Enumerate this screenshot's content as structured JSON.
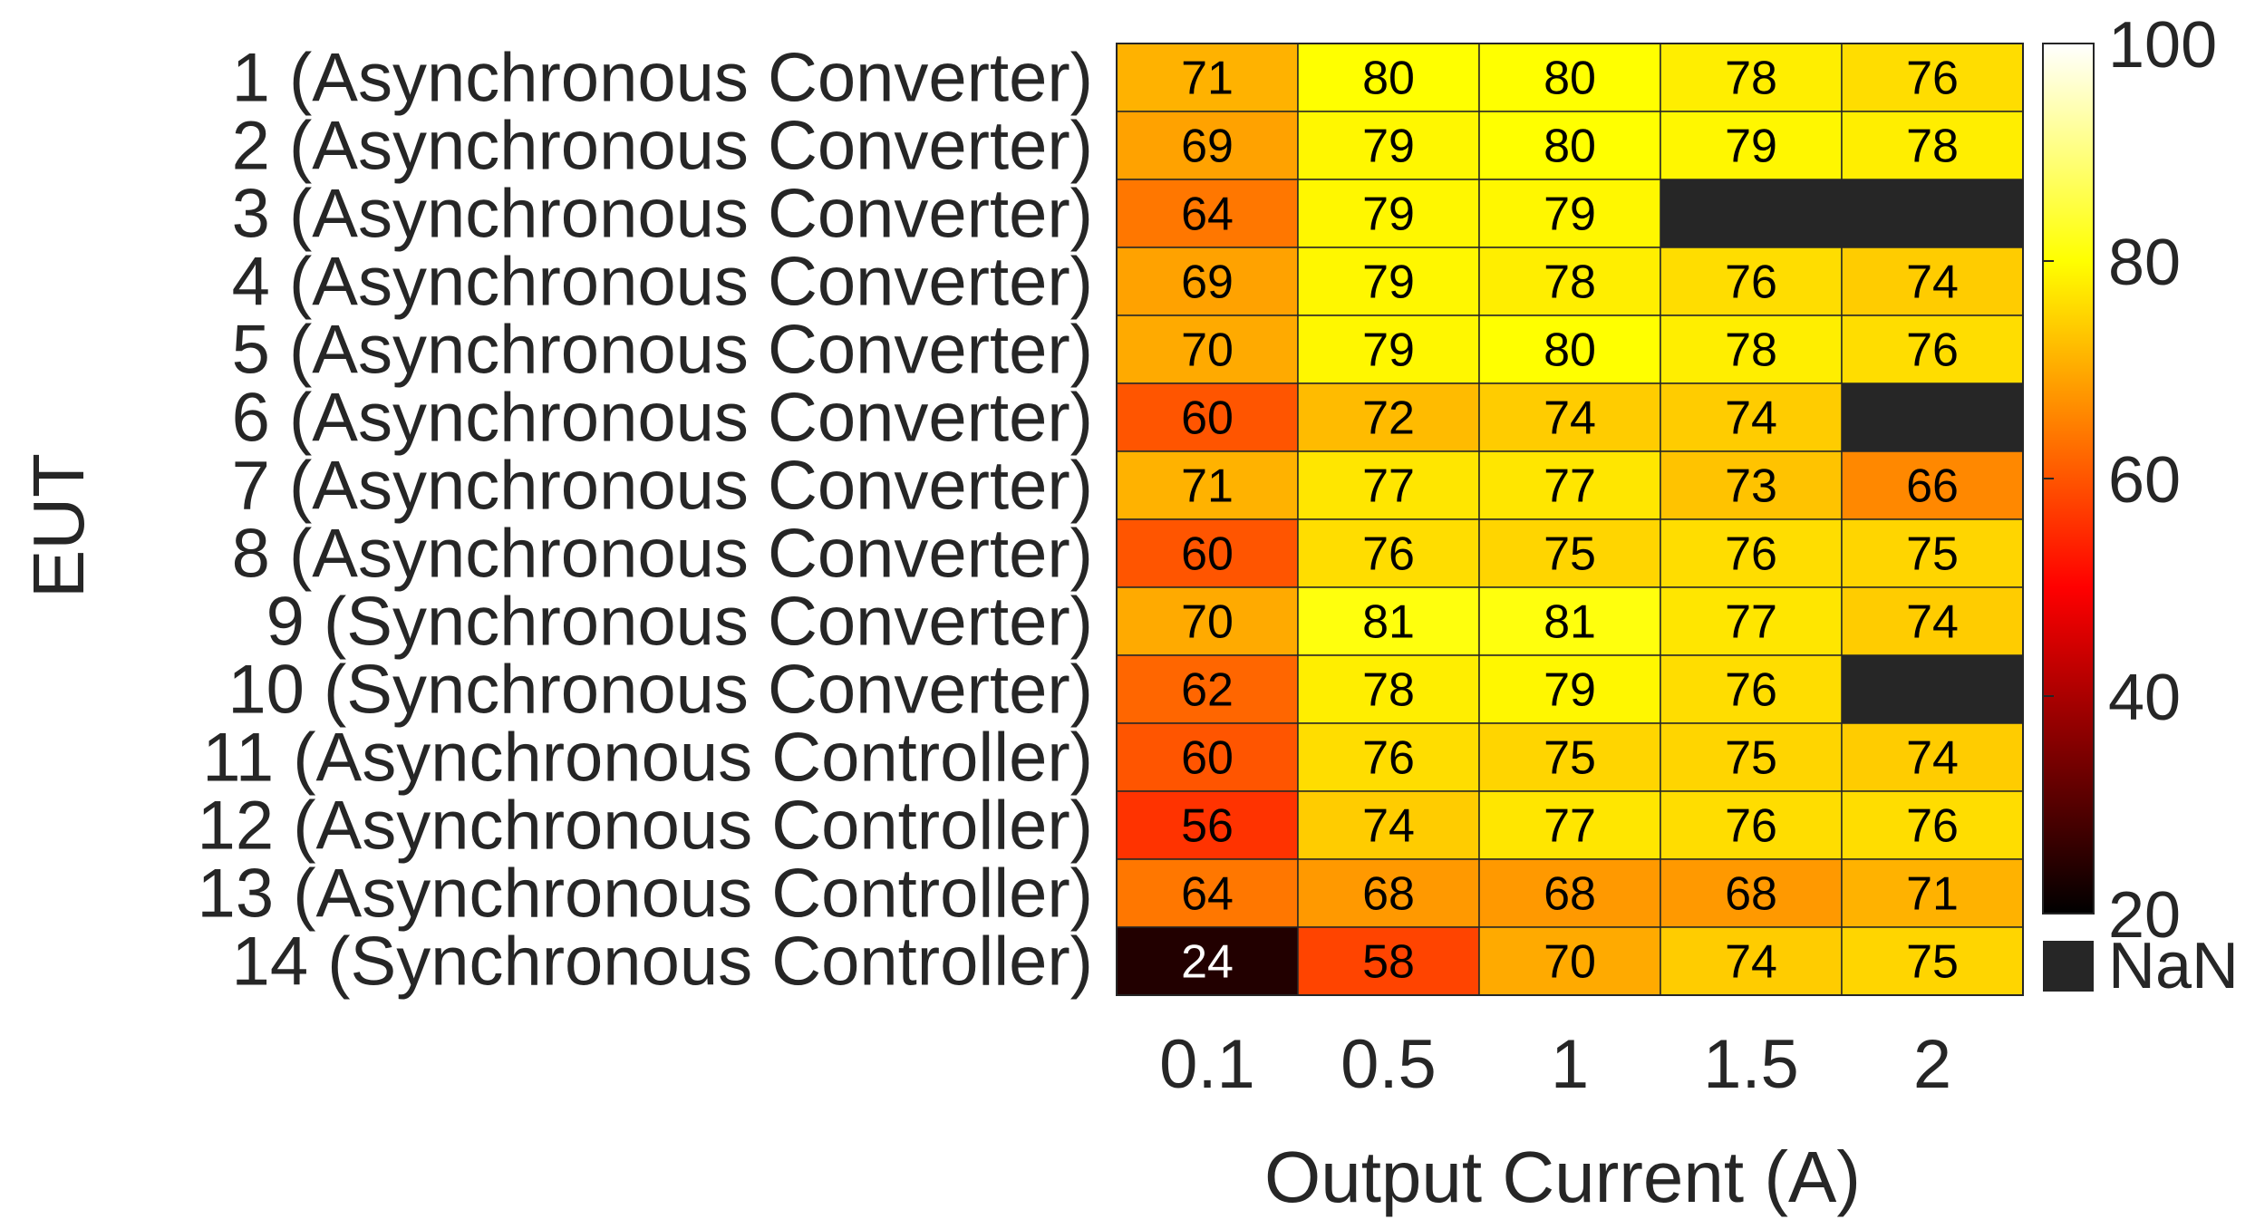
{
  "chart_data": {
    "type": "heatmap",
    "title": "",
    "xlabel": "Output Current (A)",
    "ylabel": "EUT",
    "x_categories": [
      "0.1",
      "0.5",
      "1",
      "1.5",
      "2"
    ],
    "y_categories": [
      "1 (Asynchronous Converter)",
      "2 (Asynchronous Converter)",
      "3 (Asynchronous Converter)",
      "4 (Asynchronous Converter)",
      "5 (Asynchronous Converter)",
      "6 (Asynchronous Converter)",
      "7 (Asynchronous Converter)",
      "8 (Asynchronous Converter)",
      "9 (Synchronous Converter)",
      "10 (Synchronous Converter)",
      "11 (Asynchronous Controller)",
      "12 (Asynchronous Controller)",
      "13 (Asynchronous Controller)",
      "14 (Synchronous Controller)"
    ],
    "values": [
      [
        71,
        80,
        80,
        78,
        76
      ],
      [
        69,
        79,
        80,
        79,
        78
      ],
      [
        64,
        79,
        79,
        null,
        null
      ],
      [
        69,
        79,
        78,
        76,
        74
      ],
      [
        70,
        79,
        80,
        78,
        76
      ],
      [
        60,
        72,
        74,
        74,
        null
      ],
      [
        71,
        77,
        77,
        73,
        66
      ],
      [
        60,
        76,
        75,
        76,
        75
      ],
      [
        70,
        81,
        81,
        77,
        74
      ],
      [
        62,
        78,
        79,
        76,
        null
      ],
      [
        60,
        76,
        75,
        75,
        74
      ],
      [
        56,
        74,
        77,
        76,
        76
      ],
      [
        64,
        68,
        68,
        68,
        71
      ],
      [
        24,
        58,
        70,
        74,
        75
      ]
    ],
    "colormap": "hot",
    "color_range": [
      20,
      100
    ],
    "colorbar_ticks": [
      "20",
      "40",
      "60",
      "80",
      "100"
    ],
    "missing_label": "NaN",
    "missing_color": "#262626",
    "grid": false,
    "legend": "right"
  }
}
